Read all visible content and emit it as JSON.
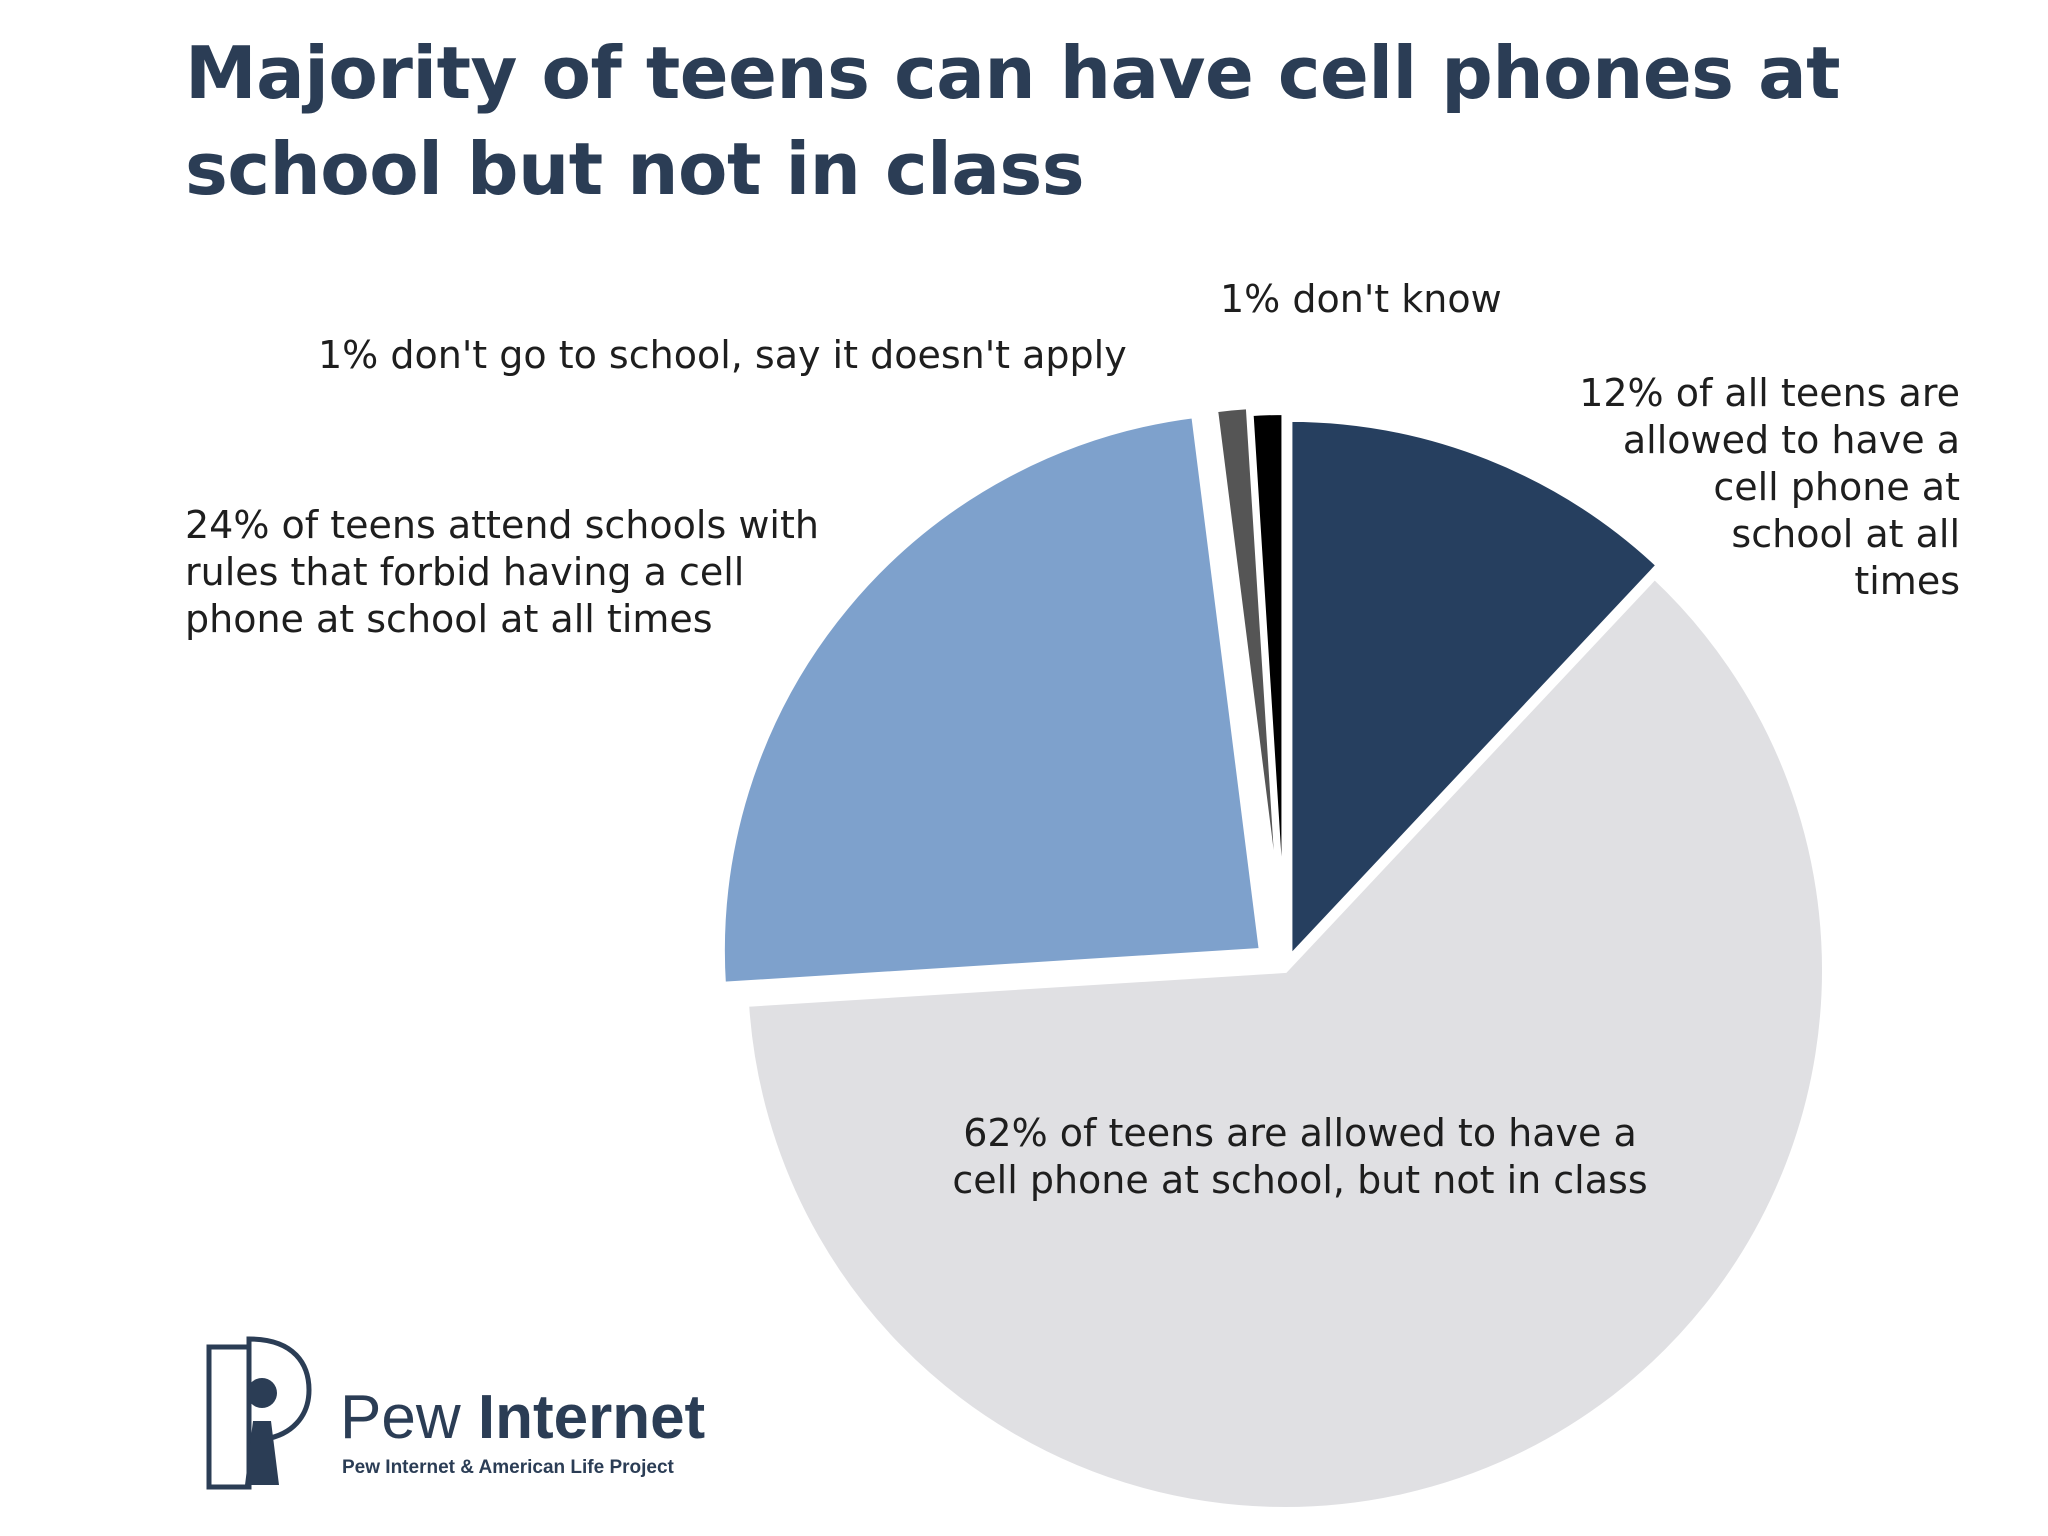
{
  "chart_data": {
    "type": "pie",
    "title": "Majority of teens can have cell phones at school but not in class",
    "slices": [
      {
        "label": "12% of all teens are allowed to have a cell phone at school at all times",
        "value": 12,
        "color": "#263f5f"
      },
      {
        "label": "62% of teens are allowed to have a cell phone at school, but not in class",
        "value": 62,
        "color": "#e0e0e3"
      },
      {
        "label": "24% of teens attend schools with rules that forbid having a cell phone at school at all times",
        "value": 24,
        "color": "#7ea1cc"
      },
      {
        "label": "1% don't go to school, say it doesn't apply",
        "value": 1,
        "color": "#555555"
      },
      {
        "label": "1% don't know",
        "value": 1,
        "color": "#000000"
      }
    ],
    "legend": "none"
  },
  "labels": {
    "allowed_all_times": "12% of all teens are\nallowed to have a\ncell phone at\nschool at all\ntimes",
    "not_in_class": "62% of teens are allowed to have a\ncell phone at school, but not in class",
    "forbid": "24% of teens attend schools with\nrules that forbid having a cell\nphone at school at all times",
    "dont_go": "1% don't go to school, say it doesn't apply",
    "dont_know": "1% don't know"
  },
  "logo": {
    "name_light": "Pew ",
    "name_bold": "Internet",
    "subtitle": "Pew Internet & American Life Project"
  }
}
